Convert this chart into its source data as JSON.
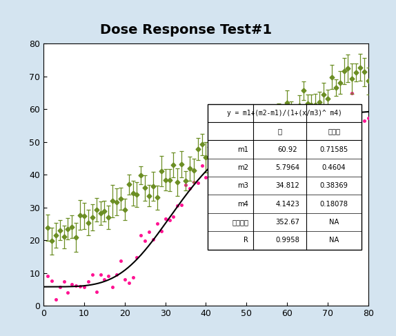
{
  "title": "Dose Response Test#1",
  "xlim": [
    0,
    80
  ],
  "ylim": [
    0,
    80
  ],
  "xticks": [
    0,
    10,
    20,
    30,
    40,
    50,
    60,
    70,
    80
  ],
  "yticks": [
    0,
    10,
    20,
    30,
    40,
    50,
    60,
    70,
    80
  ],
  "m1": 60.92,
  "m2": 5.7964,
  "m3": 34.812,
  "m4": 4.1423,
  "pink_color": "#FF1493",
  "green_color": "#6B8E23",
  "curve_color": "#000000",
  "title_fontsize": 14,
  "table_formula": "y = m1+(m2-m1)/(1+(x/m3)^ m4)",
  "col_header_1": "値",
  "col_header_2": "エラー",
  "row_labels": [
    "m1",
    "m2",
    "m3",
    "m4",
    "カイ２乗",
    "R"
  ],
  "row_vals": [
    "60.92",
    "5.7964",
    "34.812",
    "4.1423",
    "352.67",
    "0.9958"
  ],
  "row_errs": [
    "0.71585",
    "0.4604",
    "0.38369",
    "0.18078",
    "NA",
    "NA"
  ],
  "fig_bg": "#D4E4F0",
  "plot_bg": "#FFFFFF"
}
